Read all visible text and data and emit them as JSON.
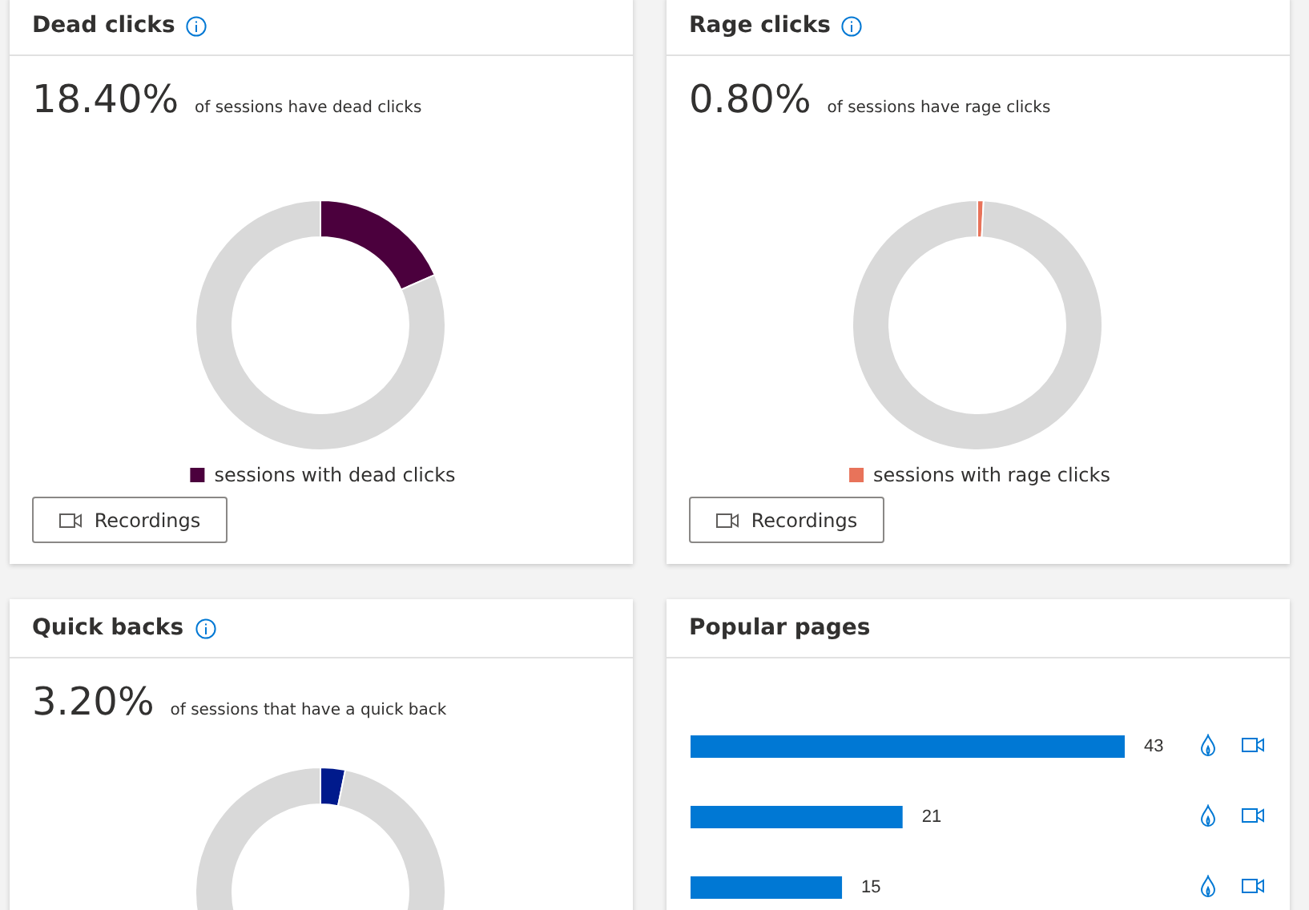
{
  "chart_data": [
    {
      "type": "donut",
      "title": "Dead clicks",
      "annotations": [
        "18.40%",
        "of sessions have dead clicks",
        "Recordings"
      ],
      "categories": [
        "sessions with dead clicks",
        null
      ],
      "values": [
        18.4,
        81.6
      ],
      "colors": [
        "#4b003d",
        "#d9d9d9"
      ],
      "legend": "bottom"
    },
    {
      "type": "donut",
      "title": "Rage clicks",
      "annotations": [
        "0.80%",
        "of sessions have rage clicks",
        "Recordings"
      ],
      "categories": [
        "sessions with rage clicks",
        null
      ],
      "values": [
        0.8,
        99.2
      ],
      "colors": [
        "#e8735a",
        "#d9d9d9"
      ],
      "legend": "bottom"
    },
    {
      "type": "donut",
      "title": "Quick backs",
      "annotations": [
        "3.20%",
        "of sessions that have a quick back"
      ],
      "categories": [
        null,
        null
      ],
      "values": [
        3.2,
        96.8
      ],
      "colors": [
        "#001a8c",
        "#d9d9d9"
      ]
    },
    {
      "type": "bar",
      "title": "Popular pages",
      "orientation": "horizontal",
      "categories": [
        null,
        null,
        null
      ],
      "values": [
        43,
        21,
        15
      ],
      "color": "#0078d4",
      "data_labels": true
    }
  ]
}
